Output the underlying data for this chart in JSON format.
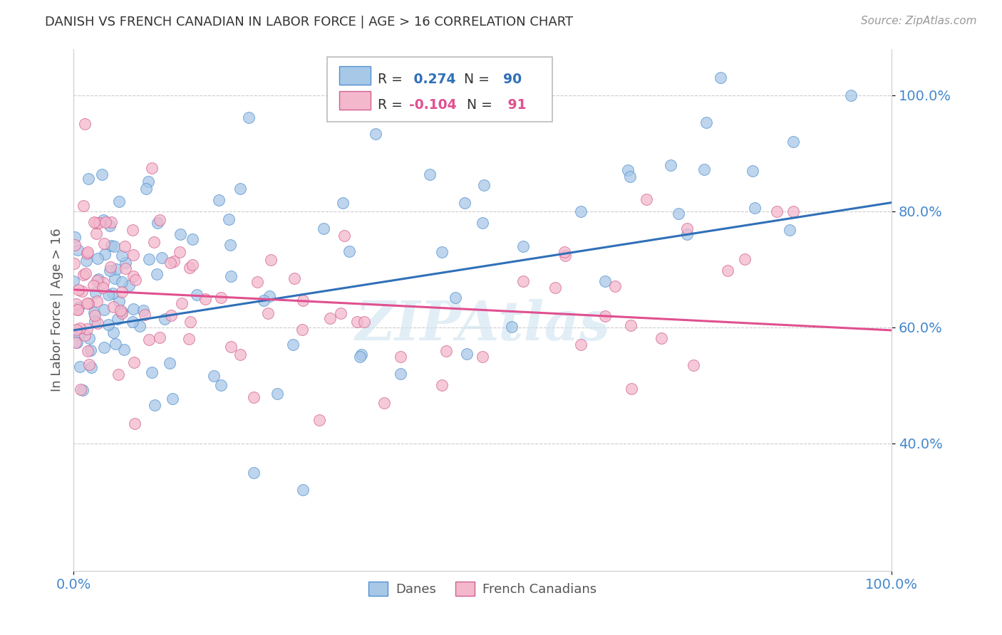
{
  "title": "DANISH VS FRENCH CANADIAN IN LABOR FORCE | AGE > 16 CORRELATION CHART",
  "source": "Source: ZipAtlas.com",
  "ylabel": "In Labor Force | Age > 16",
  "blue_R": 0.274,
  "blue_N": 90,
  "pink_R": -0.104,
  "pink_N": 91,
  "blue_color": "#a8c8e8",
  "pink_color": "#f4b8cc",
  "blue_line_color": "#3070b8",
  "pink_line_color": "#e05090",
  "blue_edge_color": "#5090d0",
  "pink_edge_color": "#d06090",
  "xlim": [
    0.0,
    1.0
  ],
  "ylim": [
    0.18,
    1.08
  ],
  "yticks": [
    0.4,
    0.6,
    0.8,
    1.0
  ],
  "ytick_labels": [
    "40.0%",
    "60.0%",
    "80.0%",
    "100.0%"
  ],
  "xticks": [
    0.0,
    1.0
  ],
  "xtick_labels": [
    "0.0%",
    "100.0%"
  ],
  "tick_label_color": "#4488cc",
  "watermark": "ZIPAtlas",
  "background_color": "#ffffff",
  "grid_color": "#cccccc",
  "blue_trend_x": [
    0.0,
    1.0
  ],
  "blue_trend_y": [
    0.595,
    0.815
  ],
  "pink_trend_x": [
    0.0,
    1.0
  ],
  "pink_trend_y": [
    0.665,
    0.595
  ],
  "marker_size": 130
}
